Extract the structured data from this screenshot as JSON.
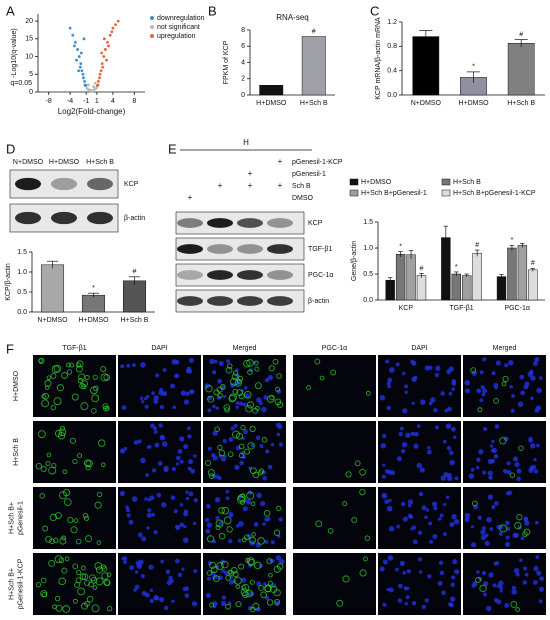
{
  "panels": [
    "A",
    "B",
    "C",
    "D",
    "E",
    "F"
  ],
  "chart_data": [
    {
      "type": "scatter",
      "xlabel": "Log2(Fold-change)",
      "ylabel": "-Log10(q-value)",
      "annotation": "q=0.05",
      "xlim": [
        -10,
        10
      ],
      "ylim": [
        0,
        22
      ],
      "xticks": [
        -8,
        -4,
        -1,
        1,
        4,
        8
      ],
      "yticks": [
        0,
        5,
        10,
        15,
        20
      ],
      "series": [
        {
          "name": "downregulation",
          "color": "#3a8fc8",
          "x": [
            -1.2,
            -1.5,
            -1.8,
            -2,
            -2.3,
            -2.6,
            -3,
            -3.5,
            -4,
            -1.3,
            -1.6,
            -2.1,
            -2.8,
            -1.1,
            -1.9,
            -3.2,
            -2.4,
            -1.4
          ],
          "y": [
            2,
            4,
            6,
            8,
            10,
            12,
            14,
            16,
            18,
            3,
            5,
            7,
            9,
            1.8,
            11,
            13,
            6,
            15
          ]
        },
        {
          "name": "not significant",
          "color": "#b8b8b8",
          "x": [
            -0.8,
            -0.5,
            -0.2,
            0,
            0.3,
            0.6,
            0.9,
            -0.6,
            0.4,
            -0.3,
            0.7,
            0.1
          ],
          "y": [
            1,
            0.5,
            0.2,
            0.1,
            0.3,
            0.8,
            1.1,
            2,
            1.5,
            0.6,
            2.5,
            0.4
          ]
        },
        {
          "name": "upregulation",
          "color": "#e8643c",
          "x": [
            1.2,
            1.5,
            1.8,
            2,
            2.3,
            2.6,
            3,
            3.5,
            4,
            1.3,
            1.6,
            2.1,
            2.8,
            1.1,
            1.9,
            3.2,
            2.4,
            4.5,
            5,
            3.8
          ],
          "y": [
            2,
            4,
            6,
            8,
            10,
            12,
            14,
            16,
            18,
            3,
            5,
            7,
            9,
            1.8,
            11,
            13,
            15,
            19,
            20,
            17
          ]
        }
      ]
    },
    {
      "type": "bar",
      "title": "RNA-seq",
      "ylabel": "FPKM of KCP",
      "categories": [
        "H+DMSO",
        "H+Sch B"
      ],
      "values": [
        1.2,
        7.2
      ],
      "significance": [
        null,
        "#"
      ],
      "colors": [
        "#111111",
        "#a0a0a8"
      ],
      "ylim": [
        0,
        8
      ],
      "yticks": [
        0,
        2,
        4,
        6,
        8
      ]
    },
    {
      "type": "bar",
      "ylabel": "KCP mRNA/β-actin mRNA",
      "categories": [
        "N+DMSO",
        "H+DMSO",
        "H+Sch B"
      ],
      "values": [
        0.96,
        0.29,
        0.85
      ],
      "errors": [
        0.1,
        0.09,
        0.06
      ],
      "significance": [
        null,
        "*",
        "#"
      ],
      "colors": [
        "#000000",
        "#9090a0",
        "#808080"
      ],
      "ylim": [
        0,
        1.2
      ],
      "yticks": [
        {
          "value": 0,
          "label": "0.0"
        },
        0.4,
        0.8,
        1.2
      ]
    },
    {
      "type": "bar",
      "ylabel": "KCP/β-actin",
      "categories": [
        "N+DMSO",
        "H+DMSO",
        "H+Sch B"
      ],
      "values": [
        1.18,
        0.42,
        0.78
      ],
      "errors": [
        0.09,
        0.05,
        0.1
      ],
      "significance": [
        null,
        "*",
        "#"
      ],
      "colors": [
        "#a8a8a8",
        "#777777",
        "#555555"
      ],
      "ylim": [
        0,
        1.5
      ],
      "yticks": [
        {
          "value": 0,
          "label": "0.0"
        },
        0.5,
        {
          "value": 1,
          "label": "1.0"
        },
        1.5
      ]
    },
    {
      "type": "bar",
      "ylabel": "Gene/β-actin",
      "categories": [
        "KCP",
        "TGF-β1",
        "PGC-1α"
      ],
      "ylim": [
        0,
        1.5
      ],
      "yticks": [
        {
          "value": 0,
          "label": "0.0"
        },
        0.5,
        {
          "value": 1,
          "label": "1.0"
        },
        1.5
      ],
      "series": [
        {
          "name": "H+DMSO",
          "color": "#111111",
          "values": [
            0.38,
            1.2,
            0.45
          ],
          "errors": [
            0.05,
            0.22,
            0.04
          ],
          "significance": [
            null,
            null,
            null
          ]
        },
        {
          "name": "H+Sch B",
          "color": "#777777",
          "values": [
            0.88,
            0.5,
            1.0
          ],
          "errors": [
            0.05,
            0.04,
            0.05
          ],
          "significance": [
            "*",
            "*",
            "*"
          ]
        },
        {
          "name": "H+Sch B+pGenesil-1",
          "color": "#a0a0a0",
          "values": [
            0.87,
            0.47,
            1.05
          ],
          "errors": [
            0.08,
            0.03,
            0.04
          ],
          "significance": [
            null,
            null,
            null
          ]
        },
        {
          "name": "H+Sch B+pGenesil-1-KCP",
          "color": "#dddddd",
          "values": [
            0.47,
            0.9,
            0.58
          ],
          "errors": [
            0.04,
            0.06,
            0.03
          ],
          "significance": [
            "#",
            "#",
            "#"
          ]
        }
      ]
    }
  ],
  "blot_d": {
    "lanes": [
      "N+DMSO",
      "H+DMSO",
      "H+Sch B"
    ],
    "bands": [
      "KCP",
      "β-actin"
    ]
  },
  "blot_e": {
    "header": "H",
    "conditions": [
      {
        "name": "pGenesil-1-KCP",
        "signs": [
          null,
          null,
          null,
          "+"
        ]
      },
      {
        "name": "pGenesil-1",
        "signs": [
          null,
          null,
          "+",
          null
        ]
      },
      {
        "name": "Sch B",
        "signs": [
          null,
          "+",
          "+",
          "+"
        ]
      },
      {
        "name": "DMSO",
        "signs": [
          "+",
          null,
          null,
          null
        ]
      }
    ],
    "bands": [
      "KCP",
      "TGF-β1",
      "PGC-1α",
      "β-actin"
    ]
  },
  "micrographs": {
    "columns": [
      "TGF-β1",
      "DAPI",
      "Merged",
      "PGC-1α",
      "DAPI",
      "Merged"
    ],
    "rows": [
      [
        "H+DMSO"
      ],
      [
        "H+Sch B"
      ],
      [
        "H+Sch B+",
        "pGenesil-1"
      ],
      [
        "H+Sch B+",
        "pGenesil-1-KCP"
      ]
    ]
  }
}
